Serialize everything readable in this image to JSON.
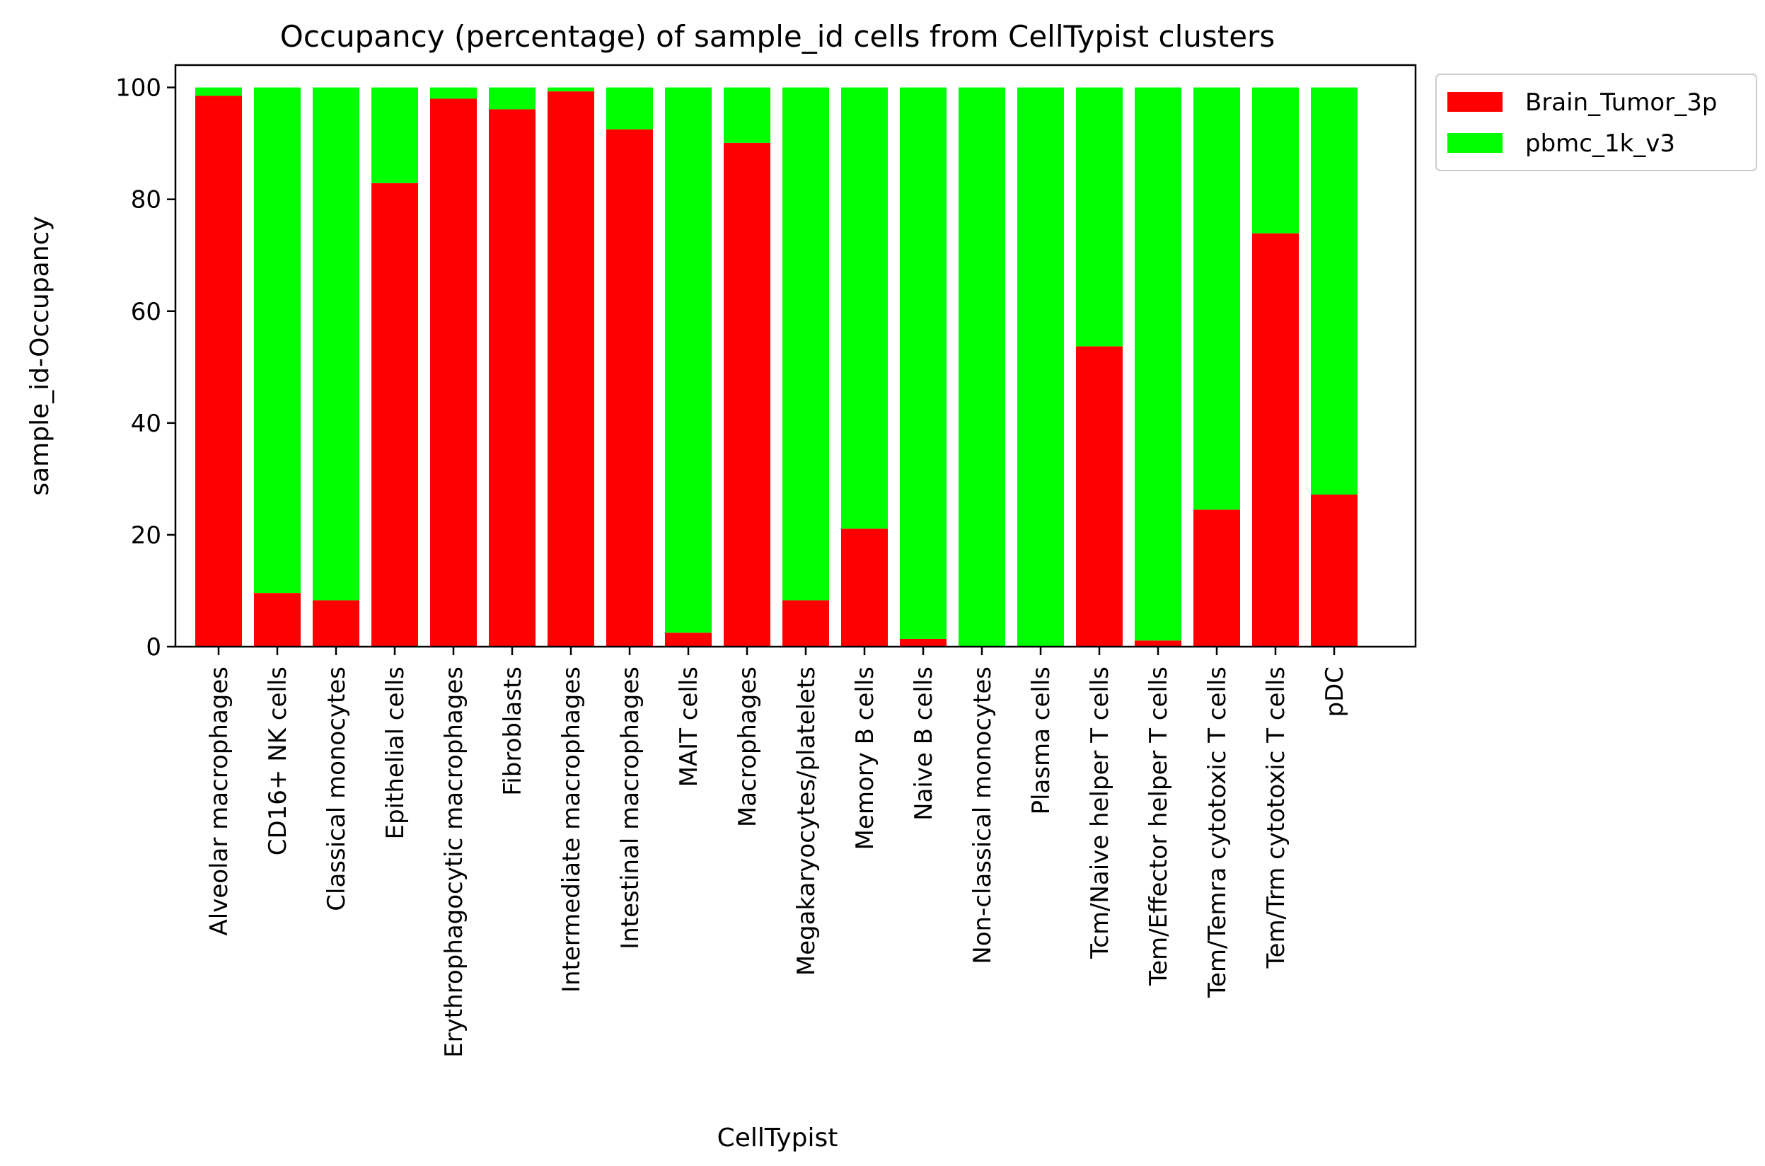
{
  "chart_data": {
    "type": "bar",
    "stacked": true,
    "title": "Occupancy (percentage) of sample_id cells from CellTypist clusters",
    "xlabel": "CellTypist",
    "ylabel": "sample_id-Occupancy",
    "ylim": [
      0,
      104
    ],
    "yticks": [
      0,
      20,
      40,
      60,
      80,
      100
    ],
    "grid": false,
    "legend_position": "outside top-right",
    "categories": [
      "Alveolar macrophages",
      "CD16+ NK cells",
      "Classical monocytes",
      "Epithelial cells",
      "Erythrophagocytic macrophages",
      "Fibroblasts",
      "Intermediate macrophages",
      "Intestinal macrophages",
      "MAIT cells",
      "Macrophages",
      "Megakaryocytes/platelets",
      "Memory B cells",
      "Naive B cells",
      "Non-classical monocytes",
      "Plasma cells",
      "Tcm/Naive helper T cells",
      "Tem/Effector helper T cells",
      "Tem/Temra cytotoxic T cells",
      "Tem/Trm cytotoxic T cells",
      "pDC"
    ],
    "series": [
      {
        "name": "Brain_Tumor_3p",
        "color": "#ff0000",
        "values": [
          98.5,
          9.6,
          8.3,
          82.9,
          98.0,
          96.1,
          99.3,
          92.5,
          2.5,
          90.1,
          8.3,
          21.1,
          1.4,
          0.0,
          0.0,
          53.7,
          1.1,
          24.5,
          73.9,
          27.2
        ]
      },
      {
        "name": "pbmc_1k_v3",
        "color": "#00ff00",
        "values": [
          1.5,
          90.4,
          91.7,
          17.1,
          2.0,
          3.9,
          0.7,
          7.5,
          97.5,
          9.9,
          91.7,
          78.9,
          98.6,
          100.0,
          100.0,
          46.3,
          98.9,
          75.5,
          26.1,
          72.8
        ]
      }
    ]
  }
}
